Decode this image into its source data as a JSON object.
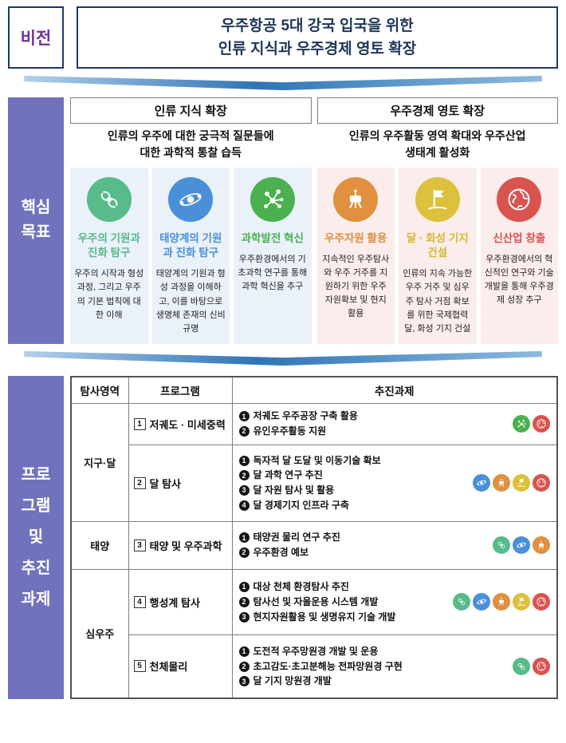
{
  "vision": {
    "label": "비전",
    "title_line1": "우주항공 5대 강국 입국을 위한",
    "title_line2": "인류 지식과 우주경제 영토 확장"
  },
  "core": {
    "label": "핵심\n목표",
    "groups": [
      {
        "header": "인류 지식 확장",
        "desc": "인류의 우주에 대한 궁극적 질문들에\n대한 과학적 통찰 습득"
      },
      {
        "header": "우주경제 영토 확장",
        "desc": "인류의 우주활동 영역 확대와 우주산업\n생태계 활성화"
      }
    ],
    "cards": [
      {
        "icon": "galaxy",
        "color": "#57BB8A",
        "title": "우주의 기원과 진화 탐구",
        "desc": "우주의 시작과 형성 과정, 그리고 우주의 기본 법칙에 대한 이해"
      },
      {
        "icon": "atom",
        "color": "#4A90D9",
        "title": "태양계의 기원과 진화 탐구",
        "desc": "태양계의 기원과 형성 과정을 이해하고, 이를 바탕으로 생명체 존재의 신비 규명"
      },
      {
        "icon": "neuron",
        "color": "#4CB050",
        "title": "과학발전 혁신",
        "desc": "우주환경에서의 기초과학 연구를 통해 과학 혁신을 추구"
      },
      {
        "icon": "rover",
        "color": "#E0903F",
        "title": "우주자원 활용",
        "desc": "지속적인 우주탐사와 우주 거주를 지원하기 위한 우주 자원확보 및 현지 활용"
      },
      {
        "icon": "flag",
        "color": "#D5B930",
        "title": "달 · 화성 기지 건설",
        "desc": "인류의 지속 가능한 우주 거주 및 심우주 탐사 거점 확보를 위한 국제협력 달, 화성 기지 건설"
      },
      {
        "icon": "earth",
        "color": "#D9534F",
        "title": "신산업 창출",
        "desc": "우주환경에서의 혁신적인 연구와 기술 개발을 통해 우주경제 성장 추구"
      }
    ]
  },
  "programs": {
    "label": "프로\n그램\n및\n추진\n과제",
    "headers": {
      "area": "탐사영역",
      "program": "프로그램",
      "tasks": "추진과제"
    },
    "areas": {
      "earth_moon": "지구·달",
      "sun": "태양",
      "deep_space": "심우주"
    },
    "rows": [
      {
        "num": "1",
        "program": "저궤도 · 미세중력",
        "tasks": [
          {
            "n": "1",
            "text": "저궤도 우주공장 구축 활용"
          },
          {
            "n": "2",
            "text": "유인우주활동 지원"
          }
        ],
        "icons": [
          "neuron",
          "earth"
        ]
      },
      {
        "num": "2",
        "program": "달 탐사",
        "tasks": [
          {
            "n": "1",
            "text": "독자적 달 도달 및 이동기술 확보"
          },
          {
            "n": "2",
            "text": "달 과학 연구 추진"
          },
          {
            "n": "3",
            "text": "달 자원 탐사 및 활용"
          },
          {
            "n": "4",
            "text": "달 경제기지 인프라 구축"
          }
        ],
        "icons": [
          "atom",
          "rover",
          "flag",
          "earth"
        ]
      },
      {
        "num": "3",
        "program": "태양 및 우주과학",
        "tasks": [
          {
            "n": "1",
            "text": "태양권 물리 연구 추진"
          },
          {
            "n": "2",
            "text": "우주환경 예보"
          }
        ],
        "icons": [
          "galaxy",
          "atom",
          "rover"
        ]
      },
      {
        "num": "4",
        "program": "행성계 탐사",
        "tasks": [
          {
            "n": "1",
            "text": "대상 천체 환경탐사 추진"
          },
          {
            "n": "2",
            "text": "탐사선 및 자율운용 시스템 개발"
          },
          {
            "n": "3",
            "text": "현지자원활용 및 생명유지 기술 개발"
          }
        ],
        "icons": [
          "galaxy",
          "atom",
          "rover",
          "flag",
          "earth"
        ]
      },
      {
        "num": "5",
        "program": "천체물리",
        "tasks": [
          {
            "n": "1",
            "text": "도전적 우주망원경 개발 및 운용"
          },
          {
            "n": "2",
            "text": "초고감도·초고분해능 전파망원경 구현"
          },
          {
            "n": "3",
            "text": "달 기지 망원경 개발"
          }
        ],
        "icons": [
          "galaxy",
          "earth"
        ]
      }
    ]
  },
  "colors": {
    "sidebar": "#7172BE",
    "navy_border": "#1F3864",
    "vision_label_text": "#7030A0",
    "arrow_dark": "#2E74B5",
    "arrow_light": "#B4D0EA"
  },
  "icon_colors": {
    "galaxy": "#57BB8A",
    "atom": "#4A90D9",
    "neuron": "#4CB050",
    "rover": "#E0903F",
    "flag": "#DDC13D",
    "earth": "#D9534F"
  }
}
